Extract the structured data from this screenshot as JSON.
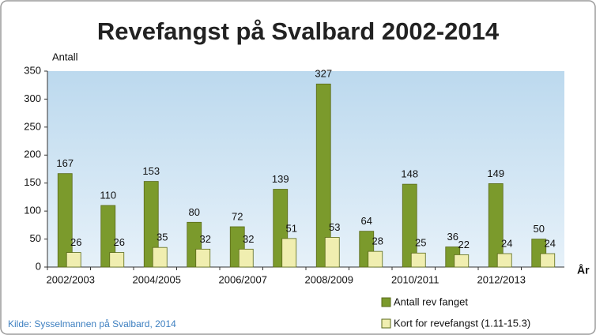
{
  "chart_data": {
    "type": "bar",
    "title": "Revefangst på Svalbard 2002-2014",
    "y_label": "Antall",
    "x_label": "År",
    "source": "Kilde: Sysselmannen på Svalbard, 2014",
    "categories": [
      "2002/2003",
      null,
      "2004/2005",
      null,
      "2006/2007",
      null,
      "2008/2009",
      null,
      "2010/2011",
      null,
      "2012/2013",
      null
    ],
    "series": [
      {
        "name": "Antall rev fanget",
        "color": "#7b9a2c",
        "values": [
          167,
          110,
          153,
          80,
          72,
          139,
          327,
          64,
          148,
          36,
          149,
          50
        ]
      },
      {
        "name": "Kort for revefangst (1.11-15.3)",
        "color": "#f0eeb0",
        "values": [
          26,
          26,
          35,
          32,
          32,
          51,
          53,
          28,
          25,
          22,
          24,
          24
        ]
      }
    ],
    "ylim": [
      0,
      350
    ],
    "yticks": [
      0,
      50,
      100,
      150,
      200,
      250,
      300,
      350
    ],
    "grid": false,
    "legend": "bottom-right"
  }
}
